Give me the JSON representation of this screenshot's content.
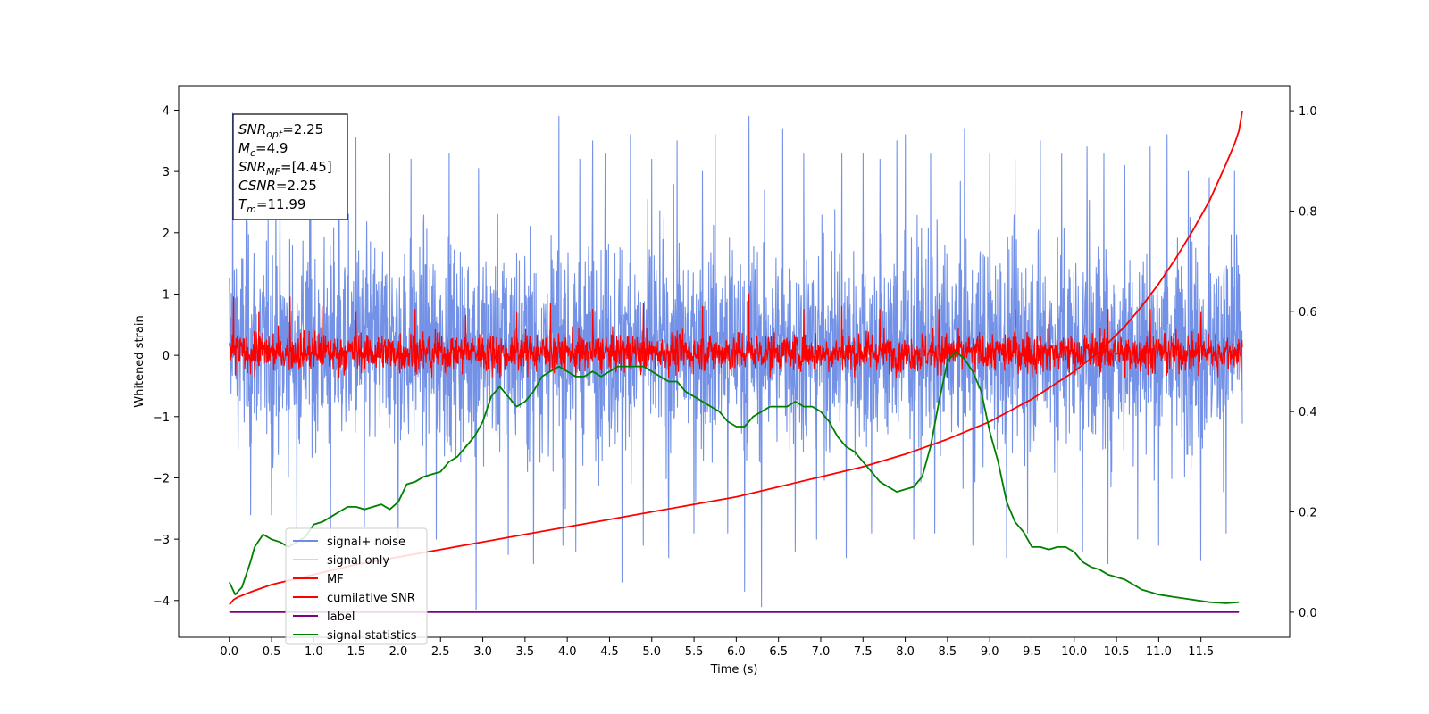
{
  "chart_data": {
    "type": "line",
    "xlabel": "Time (s)",
    "ylabel": "Whitened strain",
    "xlim": [
      -0.6,
      12.55
    ],
    "ylim": [
      -4.6,
      4.4
    ],
    "y2lim": [
      -0.05,
      1.05
    ],
    "xticks": [
      0.0,
      0.5,
      1.0,
      1.5,
      2.0,
      2.5,
      3.0,
      3.5,
      4.0,
      4.5,
      5.0,
      5.5,
      6.0,
      6.5,
      7.0,
      7.5,
      8.0,
      8.5,
      9.0,
      9.5,
      10.0,
      10.5,
      11.0,
      11.5
    ],
    "xtick_labels": [
      "0.0",
      "0.5",
      "1.0",
      "1.5",
      "2.0",
      "2.5",
      "3.0",
      "3.5",
      "4.0",
      "4.5",
      "5.0",
      "5.5",
      "6.0",
      "6.5",
      "7.0",
      "7.5",
      "8.0",
      "8.5",
      "9.0",
      "9.5",
      "10.0",
      "10.5",
      "11.0",
      "11.5"
    ],
    "yticks": [
      -4,
      -3,
      -2,
      -1,
      0,
      1,
      2,
      3,
      4
    ],
    "ytick_labels": [
      "−4",
      "−3",
      "−2",
      "−1",
      "0",
      "1",
      "2",
      "3",
      "4"
    ],
    "y2ticks": [
      0.0,
      0.2,
      0.4,
      0.6,
      0.8,
      1.0
    ],
    "y2tick_labels": [
      "0.0",
      "0.2",
      "0.4",
      "0.6",
      "0.8",
      "1.0"
    ],
    "annotation": [
      {
        "base": "SNR",
        "sub": "opt",
        "value": "=2.25"
      },
      {
        "base": "M",
        "sub": "c",
        "value": "=4.9"
      },
      {
        "base": "SNR",
        "sub": "MF",
        "value": "=[4.45]"
      },
      {
        "base": "CSNR",
        "sub": "",
        "value": "=2.25"
      },
      {
        "base": "T",
        "sub": "m",
        "value": "=11.99"
      }
    ],
    "legend_position": "lower-left",
    "legend": [
      {
        "label": "signal+ noise",
        "color": "#6c8ce6"
      },
      {
        "label": "signal only",
        "color": "#ffd280"
      },
      {
        "label": "MF",
        "color": "#ff0000"
      },
      {
        "label": "cumilative SNR",
        "color": "#ff0000"
      },
      {
        "label": "label",
        "color": "#800080"
      },
      {
        "label": "signal statistics",
        "color": "#008000"
      }
    ],
    "series": [
      {
        "name": "signal+ noise",
        "axis": "left",
        "color": "#6c8ce6",
        "band": {
          "x_start": 0.0,
          "x_end": 11.99,
          "typical_low": -2.0,
          "typical_high": 2.3,
          "max": 4.0,
          "min": -4.15
        },
        "spikes_high": [
          [
            0.04,
            3.95
          ],
          [
            0.2,
            3.5
          ],
          [
            0.55,
            3.0
          ],
          [
            0.95,
            3.3
          ],
          [
            1.3,
            3.3
          ],
          [
            1.5,
            3.55
          ],
          [
            1.9,
            3.3
          ],
          [
            2.15,
            3.2
          ],
          [
            2.6,
            3.3
          ],
          [
            2.95,
            3.05
          ],
          [
            3.3,
            3.6
          ],
          [
            3.6,
            3.1
          ],
          [
            3.9,
            3.9
          ],
          [
            4.15,
            3.2
          ],
          [
            4.3,
            3.5
          ],
          [
            4.45,
            3.3
          ],
          [
            4.75,
            3.6
          ],
          [
            5.0,
            3.2
          ],
          [
            5.3,
            3.5
          ],
          [
            5.6,
            3.0
          ],
          [
            5.75,
            3.6
          ],
          [
            6.15,
            3.9
          ],
          [
            6.55,
            3.7
          ],
          [
            6.8,
            3.3
          ],
          [
            6.95,
            3.5
          ],
          [
            7.25,
            3.3
          ],
          [
            7.5,
            3.3
          ],
          [
            7.7,
            3.2
          ],
          [
            7.9,
            3.5
          ],
          [
            8.0,
            3.6
          ],
          [
            8.3,
            3.3
          ],
          [
            8.7,
            3.7
          ],
          [
            9.0,
            3.3
          ],
          [
            9.3,
            3.2
          ],
          [
            9.6,
            3.5
          ],
          [
            9.85,
            3.3
          ],
          [
            10.15,
            3.4
          ],
          [
            10.35,
            3.3
          ],
          [
            10.6,
            3.1
          ],
          [
            10.9,
            3.4
          ],
          [
            11.1,
            3.6
          ],
          [
            11.35,
            3.0
          ],
          [
            11.6,
            2.9
          ],
          [
            11.9,
            3.0
          ]
        ],
        "spikes_low": [
          [
            0.25,
            -2.6
          ],
          [
            0.5,
            -2.6
          ],
          [
            0.8,
            -2.9
          ],
          [
            1.2,
            -2.95
          ],
          [
            1.6,
            -2.8
          ],
          [
            2.0,
            -3.0
          ],
          [
            2.45,
            -3.0
          ],
          [
            2.92,
            -4.15
          ],
          [
            3.3,
            -3.25
          ],
          [
            3.6,
            -3.4
          ],
          [
            3.95,
            -3.1
          ],
          [
            4.1,
            -3.2
          ],
          [
            4.65,
            -3.7
          ],
          [
            4.9,
            -3.1
          ],
          [
            5.2,
            -3.3
          ],
          [
            5.5,
            -2.9
          ],
          [
            5.9,
            -2.9
          ],
          [
            6.1,
            -3.85
          ],
          [
            6.3,
            -4.1
          ],
          [
            6.7,
            -3.2
          ],
          [
            6.95,
            -3.0
          ],
          [
            7.3,
            -3.3
          ],
          [
            7.6,
            -2.9
          ],
          [
            8.1,
            -3.0
          ],
          [
            8.35,
            -2.9
          ],
          [
            8.8,
            -3.1
          ],
          [
            9.2,
            -3.3
          ],
          [
            9.45,
            -2.9
          ],
          [
            9.8,
            -2.9
          ],
          [
            10.1,
            -3.2
          ],
          [
            10.4,
            -3.4
          ],
          [
            10.75,
            -3.0
          ],
          [
            11.0,
            -3.1
          ],
          [
            11.5,
            -3.35
          ],
          [
            11.8,
            -2.9
          ]
        ]
      },
      {
        "name": "MF",
        "axis": "left",
        "color": "#ff0000",
        "band": {
          "x_start": 0.0,
          "x_end": 11.99,
          "typical_low": -0.35,
          "typical_high": 0.45
        },
        "spikes_high": [
          [
            0.05,
            0.95
          ],
          [
            0.35,
            0.7
          ],
          [
            0.72,
            0.95
          ],
          [
            1.1,
            0.8
          ],
          [
            1.5,
            0.7
          ],
          [
            2.2,
            0.75
          ],
          [
            2.8,
            0.65
          ],
          [
            3.4,
            0.7
          ],
          [
            3.8,
            0.85
          ],
          [
            4.3,
            0.75
          ],
          [
            4.9,
            0.85
          ],
          [
            5.6,
            0.8
          ],
          [
            6.15,
            1.0
          ],
          [
            6.8,
            0.75
          ],
          [
            7.25,
            0.8
          ],
          [
            7.7,
            0.75
          ],
          [
            8.4,
            0.75
          ],
          [
            9.3,
            0.75
          ],
          [
            9.7,
            0.75
          ],
          [
            10.4,
            0.75
          ],
          [
            10.9,
            0.75
          ],
          [
            11.5,
            0.7
          ]
        ],
        "spikes_low": [
          [
            0.3,
            -0.35
          ],
          [
            1.3,
            -0.37
          ],
          [
            2.4,
            -0.36
          ],
          [
            3.2,
            -0.37
          ],
          [
            4.1,
            -0.36
          ],
          [
            5.2,
            -0.36
          ],
          [
            6.4,
            -0.37
          ],
          [
            7.4,
            -0.35
          ],
          [
            8.5,
            -0.36
          ],
          [
            9.5,
            -0.35
          ],
          [
            10.6,
            -0.36
          ],
          [
            11.7,
            -0.35
          ]
        ]
      },
      {
        "name": "cumilative SNR",
        "axis": "right",
        "color": "#ff0000",
        "x": [
          0.0,
          0.05,
          0.1,
          0.25,
          0.5,
          0.75,
          1.0,
          1.5,
          2.0,
          2.5,
          3.0,
          3.5,
          4.0,
          4.5,
          5.0,
          5.5,
          6.0,
          6.5,
          7.0,
          7.5,
          8.0,
          8.5,
          9.0,
          9.5,
          10.0,
          10.3,
          10.6,
          10.8,
          11.0,
          11.2,
          11.4,
          11.6,
          11.8,
          11.9,
          11.95,
          11.99
        ],
        "values": [
          0.015,
          0.025,
          0.03,
          0.04,
          0.055,
          0.065,
          0.075,
          0.095,
          0.11,
          0.125,
          0.14,
          0.155,
          0.17,
          0.185,
          0.2,
          0.215,
          0.23,
          0.25,
          0.27,
          0.29,
          0.315,
          0.345,
          0.38,
          0.425,
          0.48,
          0.52,
          0.57,
          0.61,
          0.655,
          0.705,
          0.76,
          0.82,
          0.895,
          0.935,
          0.96,
          1.0
        ]
      },
      {
        "name": "label",
        "axis": "right",
        "color": "#800080",
        "x": [
          0.0,
          11.95
        ],
        "values": [
          0.0,
          0.0
        ]
      },
      {
        "name": "signal statistics",
        "axis": "right",
        "color": "#008000",
        "x": [
          0.0,
          0.07,
          0.15,
          0.25,
          0.3,
          0.4,
          0.5,
          0.6,
          0.7,
          0.8,
          0.9,
          1.0,
          1.1,
          1.2,
          1.3,
          1.4,
          1.5,
          1.6,
          1.7,
          1.8,
          1.9,
          2.0,
          2.1,
          2.2,
          2.3,
          2.4,
          2.5,
          2.6,
          2.7,
          2.8,
          2.9,
          3.0,
          3.1,
          3.2,
          3.3,
          3.4,
          3.5,
          3.6,
          3.7,
          3.8,
          3.9,
          4.0,
          4.1,
          4.2,
          4.3,
          4.4,
          4.5,
          4.6,
          4.7,
          4.8,
          4.9,
          5.0,
          5.1,
          5.2,
          5.3,
          5.4,
          5.5,
          5.6,
          5.7,
          5.8,
          5.9,
          6.0,
          6.1,
          6.2,
          6.3,
          6.4,
          6.5,
          6.6,
          6.7,
          6.8,
          6.9,
          7.0,
          7.1,
          7.2,
          7.3,
          7.4,
          7.5,
          7.6,
          7.7,
          7.8,
          7.9,
          8.0,
          8.1,
          8.2,
          8.3,
          8.4,
          8.5,
          8.6,
          8.7,
          8.8,
          8.9,
          9.0,
          9.1,
          9.2,
          9.3,
          9.4,
          9.5,
          9.6,
          9.7,
          9.8,
          9.9,
          10.0,
          10.1,
          10.2,
          10.3,
          10.4,
          10.5,
          10.6,
          10.7,
          10.8,
          10.9,
          11.0,
          11.2,
          11.4,
          11.6,
          11.8,
          11.95
        ],
        "values": [
          0.06,
          0.035,
          0.05,
          0.1,
          0.13,
          0.155,
          0.145,
          0.14,
          0.13,
          0.14,
          0.15,
          0.175,
          0.18,
          0.19,
          0.2,
          0.21,
          0.21,
          0.205,
          0.21,
          0.215,
          0.205,
          0.22,
          0.255,
          0.26,
          0.27,
          0.275,
          0.28,
          0.3,
          0.31,
          0.33,
          0.35,
          0.38,
          0.43,
          0.45,
          0.43,
          0.41,
          0.42,
          0.44,
          0.47,
          0.48,
          0.49,
          0.48,
          0.47,
          0.47,
          0.48,
          0.47,
          0.48,
          0.49,
          0.49,
          0.49,
          0.49,
          0.48,
          0.47,
          0.46,
          0.46,
          0.44,
          0.43,
          0.42,
          0.41,
          0.4,
          0.38,
          0.37,
          0.37,
          0.39,
          0.4,
          0.41,
          0.41,
          0.41,
          0.42,
          0.41,
          0.41,
          0.4,
          0.38,
          0.35,
          0.33,
          0.32,
          0.3,
          0.28,
          0.26,
          0.25,
          0.24,
          0.245,
          0.25,
          0.27,
          0.33,
          0.42,
          0.5,
          0.52,
          0.505,
          0.48,
          0.44,
          0.36,
          0.3,
          0.22,
          0.18,
          0.16,
          0.13,
          0.13,
          0.125,
          0.13,
          0.13,
          0.12,
          0.1,
          0.09,
          0.085,
          0.075,
          0.07,
          0.065,
          0.055,
          0.045,
          0.04,
          0.035,
          0.03,
          0.025,
          0.02,
          0.018,
          0.02
        ]
      }
    ]
  }
}
